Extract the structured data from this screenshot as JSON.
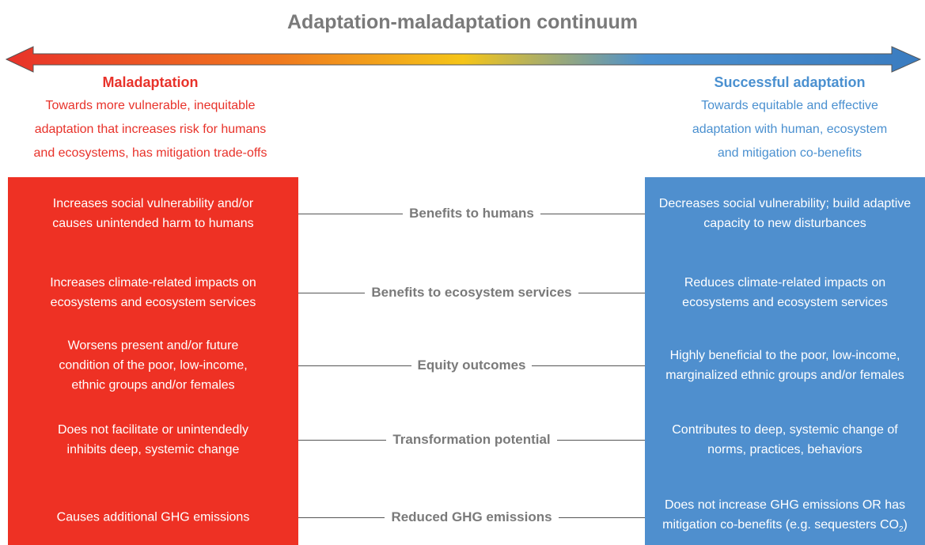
{
  "title": "Adaptation-maladaptation continuum",
  "left": {
    "heading": "Maladaptation",
    "description": [
      "Towards more vulnerable, inequitable",
      "adaptation that increases risk for humans",
      "and ecosystems, has mitigation trade-offs"
    ]
  },
  "right": {
    "heading": "Successful adaptation",
    "description": [
      "Towards equitable and effective",
      "adaptation with human, ecosystem",
      "and mitigation co-benefits"
    ]
  },
  "rows": [
    {
      "label": "Benefits to humans",
      "left": [
        "Increases social vulnerability and/or",
        "causes unintended harm to humans"
      ],
      "right": [
        "Decreases social vulnerability; build adaptive",
        "capacity to new disturbances"
      ]
    },
    {
      "label": "Benefits to ecosystem services",
      "left": [
        "Increases climate-related impacts on",
        "ecosystems and ecosystem services"
      ],
      "right": [
        "Reduces climate-related impacts on",
        "ecosystems and ecosystem services"
      ]
    },
    {
      "label": "Equity outcomes",
      "left": [
        "Worsens present and/or future",
        "condition of the poor, low-income,",
        "ethnic groups and/or females"
      ],
      "right": [
        "Highly beneficial to the poor, low-income,",
        "marginalized ethnic groups and/or females"
      ]
    },
    {
      "label": "Transformation potential",
      "left": [
        "Does not facilitate or unintendedly",
        "inhibits deep, systemic change"
      ],
      "right": [
        "Contributes to deep, systemic change of",
        "norms, practices, behaviors"
      ]
    },
    {
      "label": "Reduced GHG emissions",
      "left": [
        "Causes additional GHG emissions"
      ],
      "right": [
        "Does not increase GHG emissions OR has",
        "mitigation co-benefits (e.g. sequesters CO"
      ],
      "right_subscript": "2",
      "right_after": ")"
    }
  ]
}
